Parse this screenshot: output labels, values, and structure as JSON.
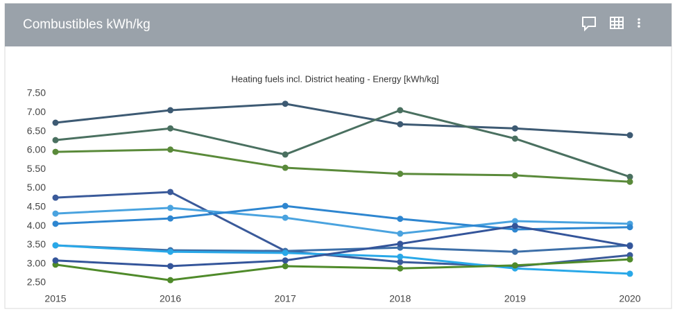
{
  "header": {
    "title": "Combustibles kWh/kg"
  },
  "chart_data": {
    "type": "line",
    "title": "Heating fuels incl. District heating - Energy [kWh/kg]",
    "x": [
      2015,
      2016,
      2017,
      2018,
      2019,
      2020
    ],
    "xlim": [
      2015,
      2020
    ],
    "xticks": [
      2015,
      2016,
      2017,
      2018,
      2019,
      2020
    ],
    "ylim": [
      2.5,
      7.5
    ],
    "yticks": [
      {
        "value": 2.5,
        "label": "2.50"
      },
      {
        "value": 3,
        "label": "3.00"
      },
      {
        "value": 3.5,
        "label": "3.50"
      },
      {
        "value": 4,
        "label": "4.00"
      },
      {
        "value": 4.5,
        "label": "4.50"
      },
      {
        "value": 5,
        "label": "5.00"
      },
      {
        "value": 5.5,
        "label": "5.50"
      },
      {
        "value": 6,
        "label": "6.00"
      },
      {
        "value": 6.5,
        "label": "6.50"
      },
      {
        "value": 7,
        "label": "7.00"
      },
      {
        "value": 7.5,
        "label": "7.50"
      }
    ],
    "grid": false,
    "series": [
      {
        "color": "#3d5a73",
        "values": [
          6.73,
          7.06,
          7.23,
          6.69,
          6.58,
          6.4
        ]
      },
      {
        "color": "#4a7060",
        "values": [
          6.27,
          6.58,
          5.89,
          7.06,
          6.31,
          5.3
        ]
      },
      {
        "color": "#5a8a3a",
        "values": [
          5.96,
          6.02,
          5.54,
          5.38,
          5.34,
          5.17
        ]
      },
      {
        "color": "#3a5a9a",
        "values": [
          4.75,
          4.9,
          3.34,
          3.05,
          2.93,
          3.23
        ]
      },
      {
        "color": "#4aa3df",
        "values": [
          4.33,
          4.48,
          4.22,
          3.8,
          4.13,
          4.06
        ]
      },
      {
        "color": "#2e86d0",
        "values": [
          4.06,
          4.2,
          4.53,
          4.19,
          3.91,
          3.97
        ]
      },
      {
        "color": "#3d6fa8",
        "values": [
          3.49,
          3.36,
          3.34,
          3.43,
          3.32,
          3.49
        ]
      },
      {
        "color": "#29a8e8",
        "values": [
          3.49,
          3.32,
          3.29,
          3.19,
          2.88,
          2.74
        ]
      },
      {
        "color": "#4f8a2a",
        "values": [
          2.98,
          2.57,
          2.94,
          2.88,
          2.96,
          3.12
        ]
      },
      {
        "color": "#34559a",
        "values": [
          3.09,
          2.94,
          3.09,
          3.53,
          4.0,
          3.47
        ]
      }
    ]
  }
}
